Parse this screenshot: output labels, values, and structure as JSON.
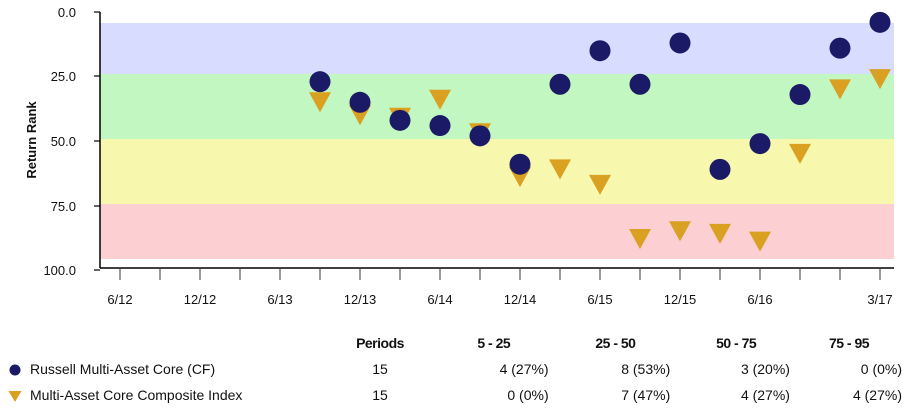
{
  "colors": {
    "band_blue": "#d8dcff",
    "band_green": "#c2f7c2",
    "band_yellow": "#f7f7ae",
    "band_red": "#fccfd3",
    "series_1": "#1a1a66",
    "series_2": "#d9a021"
  },
  "chart_data": {
    "type": "scatter",
    "xlabel": "",
    "ylabel": "Return Rank",
    "y_reversed": true,
    "ylim": [
      0,
      100
    ],
    "y_ticks": [
      "0.0",
      "25.0",
      "50.0",
      "75.0",
      "100.0"
    ],
    "bands": [
      [
        0,
        25
      ],
      [
        25,
        50
      ],
      [
        50,
        75
      ],
      [
        75,
        100
      ]
    ],
    "x_ticks": [
      "6/12",
      "12/12",
      "6/13",
      "12/13",
      "6/14",
      "12/14",
      "6/15",
      "12/15",
      "6/16",
      "3/17"
    ],
    "x_periods": [
      "9/13",
      "12/13",
      "3/14",
      "6/14",
      "9/14",
      "12/14",
      "3/15",
      "6/15",
      "9/15",
      "12/15",
      "3/16",
      "6/16",
      "9/16",
      "12/16",
      "3/17"
    ],
    "series": [
      {
        "name": "Russell Multi-Asset Core (CF)",
        "marker": "circle",
        "values": [
          27,
          35,
          42,
          44,
          48,
          59,
          28,
          15,
          28,
          12,
          61,
          51,
          32,
          14,
          4
        ]
      },
      {
        "name": "Multi-Asset Core Composite Index",
        "marker": "triangle",
        "values": [
          35,
          40,
          41,
          34,
          47,
          64,
          61,
          67,
          88,
          85,
          86,
          89,
          55,
          30,
          26
        ]
      }
    ]
  },
  "table": {
    "headers": [
      "Periods",
      "5 - 25",
      "25 - 50",
      "50 - 75",
      "75 - 95"
    ],
    "rows": [
      {
        "name": "Russell Multi-Asset Core (CF)",
        "marker": "circle",
        "cells": [
          "15",
          "4 (27%)",
          "8 (53%)",
          "3 (20%)",
          "0 (0%)"
        ]
      },
      {
        "name": "Multi-Asset Core Composite Index",
        "marker": "triangle",
        "cells": [
          "15",
          "0 (0%)",
          "7 (47%)",
          "4 (27%)",
          "4 (27%)"
        ]
      }
    ]
  }
}
